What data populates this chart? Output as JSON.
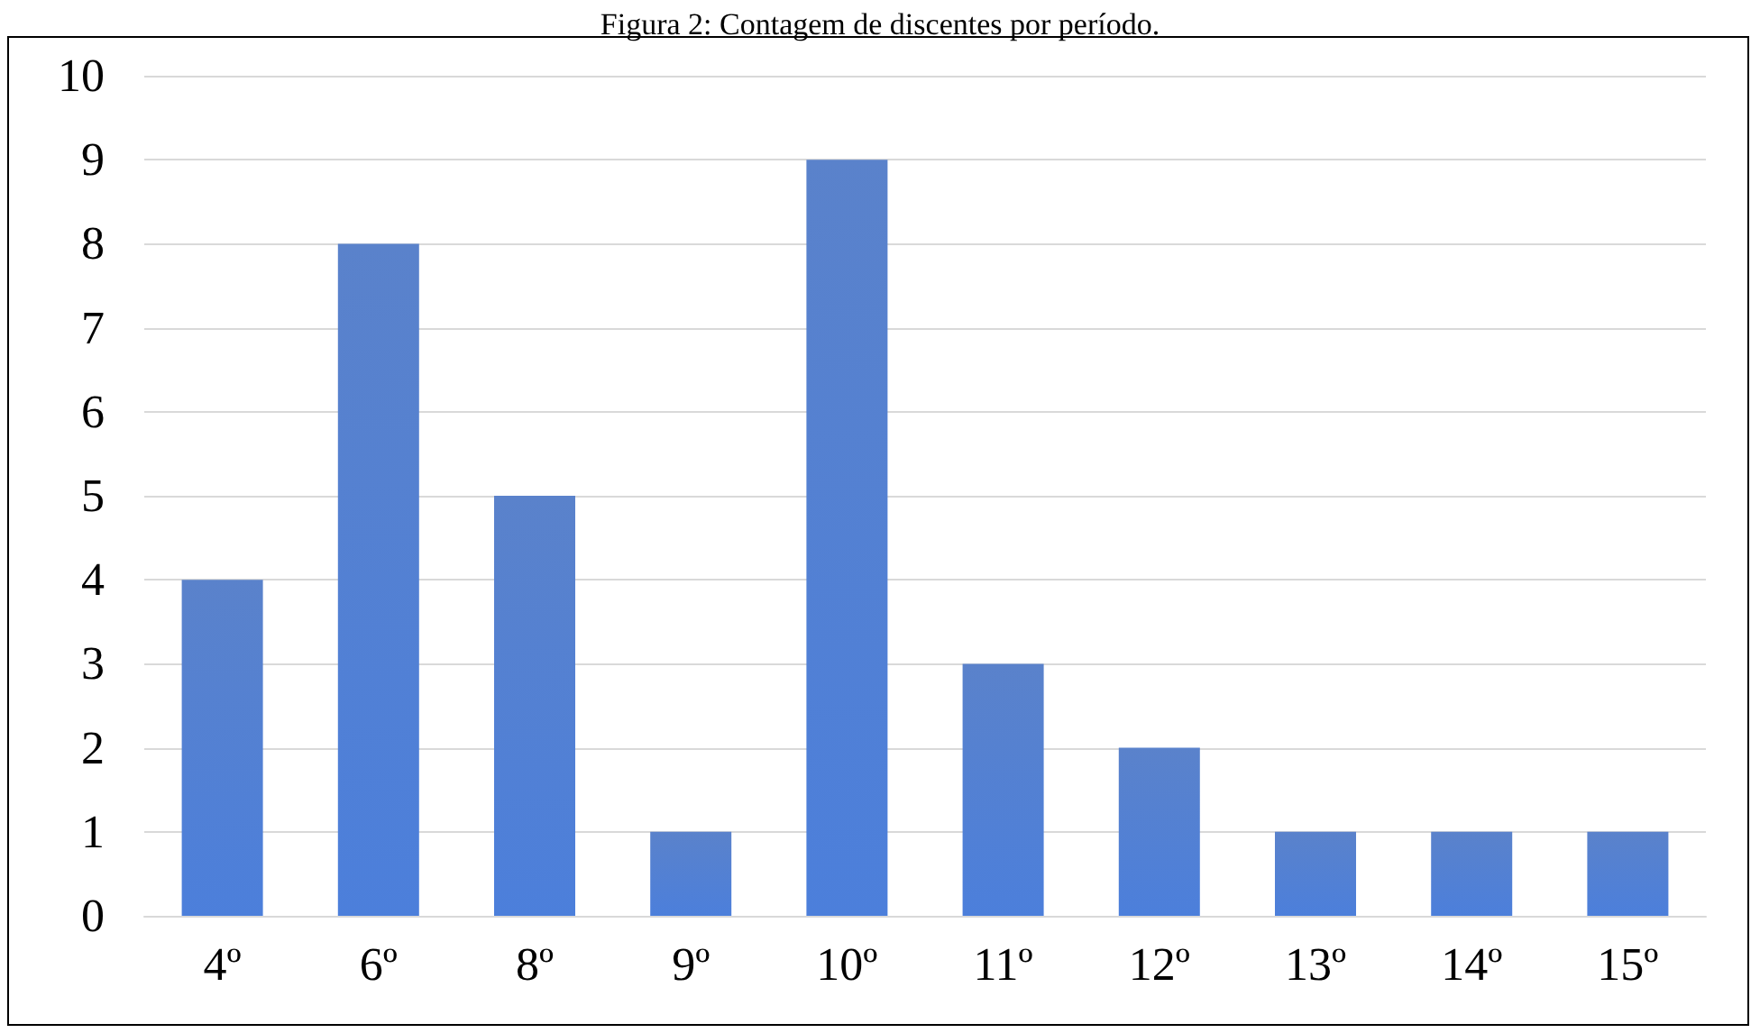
{
  "chart_data": {
    "type": "bar",
    "title": "Figura 2: Contagem de discentes por período.",
    "categories": [
      "4º",
      "6º",
      "8º",
      "9º",
      "10º",
      "11º",
      "12º",
      "13º",
      "14º",
      "15º"
    ],
    "values": [
      4,
      8,
      5,
      1,
      9,
      3,
      2,
      1,
      1,
      1
    ],
    "color": "#4472c4",
    "ylim": [
      0,
      10
    ],
    "yticks": [
      0,
      1,
      2,
      3,
      4,
      5,
      6,
      7,
      8,
      9,
      10
    ],
    "grid": "y"
  }
}
